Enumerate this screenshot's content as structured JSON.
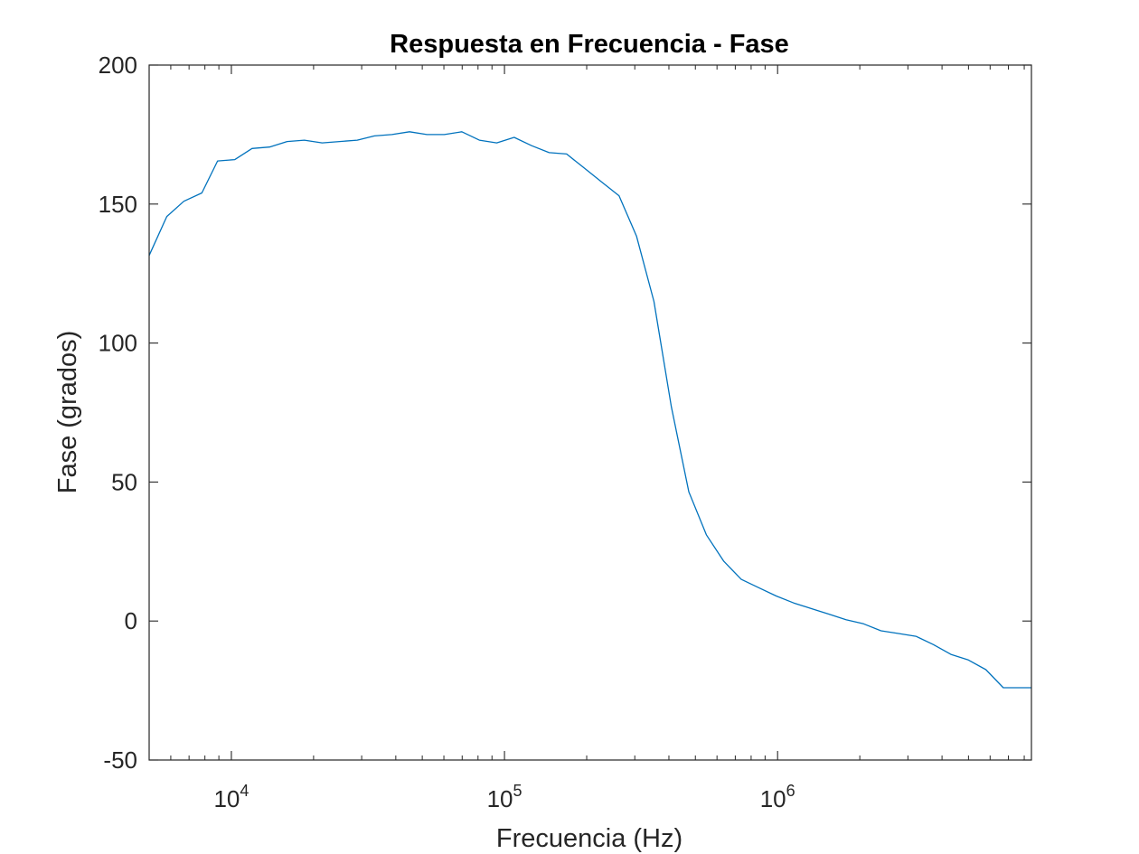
{
  "chart_data": {
    "type": "line",
    "title": "Respuesta en Frecuencia - Fase",
    "xlabel": "Frecuencia (Hz)",
    "ylabel": "Fase (grados)",
    "xscale": "log",
    "xlim": [
      5000,
      8500000
    ],
    "ylim": [
      -50,
      200
    ],
    "grid": false,
    "x_ticks": [
      {
        "value": 10000,
        "base": "10",
        "exp": "4"
      },
      {
        "value": 100000,
        "base": "10",
        "exp": "5"
      },
      {
        "value": 1000000,
        "base": "10",
        "exp": "6"
      }
    ],
    "y_ticks": [
      {
        "value": 200,
        "label": "200"
      },
      {
        "value": 150,
        "label": "150"
      },
      {
        "value": 100,
        "label": "100"
      },
      {
        "value": 50,
        "label": "50"
      },
      {
        "value": 0,
        "label": "0"
      },
      {
        "value": -50,
        "label": "-50"
      }
    ],
    "series": [
      {
        "color": "#0072BD",
        "x": [
          5000,
          5800,
          6700,
          7800,
          8900,
          10300,
          11900,
          13800,
          16000,
          18500,
          21500,
          24900,
          28900,
          33400,
          38700,
          44900,
          52000,
          60200,
          69800,
          80900,
          93700,
          108500,
          125700,
          145700,
          168800,
          195600,
          226600,
          262600,
          304300,
          352600,
          408500,
          473300,
          548400,
          635400,
          736200,
          853000,
          988400,
          1145000,
          1327000,
          1538000,
          1781000,
          2064000,
          2392000,
          2771000,
          3211000,
          3721000,
          4311000,
          4995000,
          5788000,
          6706000,
          7771000,
          8500000
        ],
        "y": [
          131.5,
          145.5,
          151,
          154,
          165.5,
          166,
          170,
          170.5,
          172.5,
          173,
          172,
          172.5,
          173,
          174.5,
          175,
          176,
          175,
          175,
          176,
          173,
          172,
          174,
          171,
          168.5,
          168,
          163,
          158,
          153,
          138.5,
          115,
          77,
          46.5,
          31,
          21.5,
          15,
          12,
          9,
          6.5,
          4.5,
          2.5,
          0.5,
          -1,
          -3.5,
          -4.5,
          -5.5,
          -8.5,
          -12,
          -14,
          -17.5,
          -24,
          -24,
          -24
        ]
      }
    ]
  }
}
